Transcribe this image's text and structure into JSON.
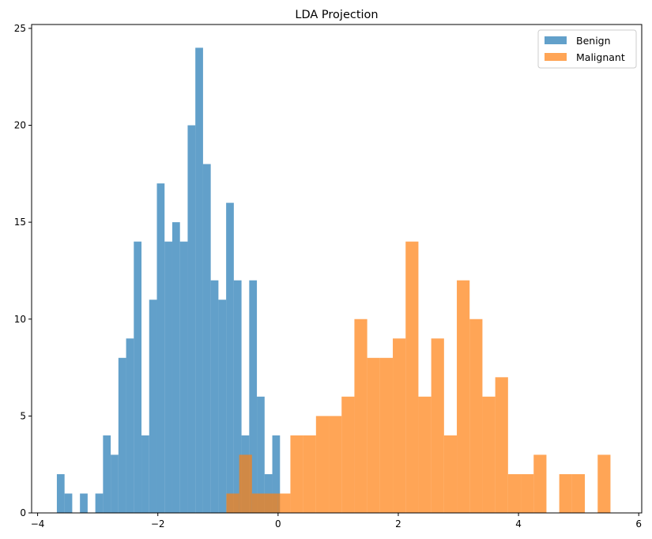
{
  "chart_data": {
    "type": "histogram",
    "title": "LDA Projection",
    "xlabel": "",
    "ylabel": "",
    "xlim": [
      -4.1,
      6.05
    ],
    "ylim": [
      0,
      25.2
    ],
    "xticks": [
      -4,
      -2,
      0,
      2,
      4,
      6
    ],
    "yticks": [
      0,
      5,
      10,
      15,
      20,
      25
    ],
    "grid": false,
    "legend_position": "top-right",
    "series": [
      {
        "name": "Benign",
        "color": "#1f77b4",
        "opacity": 0.7,
        "bin_start": -3.68,
        "bin_width": 0.128,
        "counts": [
          2,
          1,
          0,
          1,
          0,
          1,
          4,
          3,
          8,
          9,
          14,
          4,
          11,
          17,
          14,
          15,
          14,
          20,
          24,
          18,
          12,
          11,
          16,
          12,
          4,
          12,
          6,
          2,
          4
        ]
      },
      {
        "name": "Malignant",
        "color": "#ff7f0e",
        "opacity": 0.7,
        "bin_start": -0.86,
        "bin_width": 0.213,
        "counts": [
          1,
          3,
          1,
          1,
          1,
          4,
          4,
          5,
          5,
          6,
          10,
          8,
          8,
          9,
          14,
          6,
          9,
          4,
          12,
          10,
          6,
          7,
          2,
          2,
          3,
          0,
          2,
          2,
          0,
          3
        ]
      }
    ]
  }
}
